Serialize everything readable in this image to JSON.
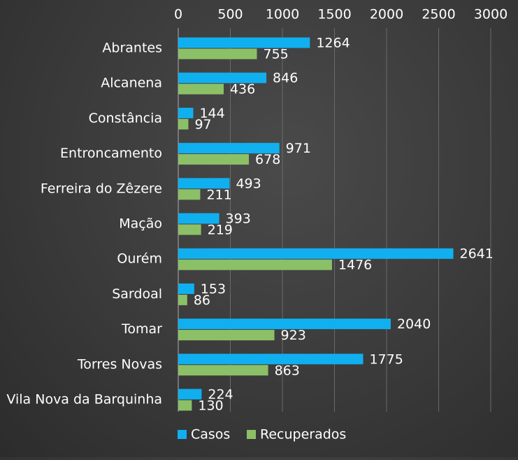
{
  "chart_data": {
    "type": "bar",
    "orientation": "horizontal",
    "title": "",
    "xlabel": "",
    "ylabel": "",
    "xlim": [
      0,
      3000
    ],
    "x_ticks": [
      0,
      500,
      1000,
      1500,
      2000,
      2500,
      3000
    ],
    "x_axis_position": "top",
    "grid": true,
    "legend_position": "bottom",
    "categories": [
      "Abrantes",
      "Alcanena",
      "Constância",
      "Entroncamento",
      "Ferreira do Zêzere",
      "Mação",
      "Ourém",
      "Sardoal",
      "Tomar",
      "Torres Novas",
      "Vila Nova da Barquinha"
    ],
    "series": [
      {
        "name": "Casos",
        "color": "#10b0f0",
        "values": [
          1264,
          846,
          144,
          971,
          493,
          393,
          2641,
          153,
          2040,
          1775,
          224
        ]
      },
      {
        "name": "Recuperados",
        "color": "#8cc067",
        "values": [
          755,
          436,
          97,
          678,
          211,
          219,
          1476,
          86,
          923,
          863,
          130
        ]
      }
    ]
  }
}
